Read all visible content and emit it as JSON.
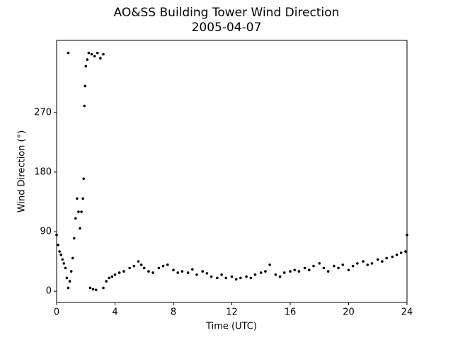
{
  "chart_data": {
    "type": "scatter",
    "title": "AO&SS Building Tower Wind Direction",
    "subtitle": "2005-04-07",
    "x_label": "Time (UTC)",
    "y_label": "Wind Direction (°)",
    "color": "#000000",
    "grid": false,
    "xlim": [
      0,
      24
    ],
    "xticks": [
      0,
      4,
      8,
      12,
      16,
      20,
      24
    ],
    "ylim": [
      -17,
      379
    ],
    "yticks": [
      0,
      90,
      180,
      270
    ],
    "x": [
      0,
      0.1,
      0.2,
      0.3,
      0.4,
      0.5,
      0.6,
      0.7,
      0.8,
      0.8,
      0.9,
      1.0,
      1.1,
      1.2,
      1.3,
      1.4,
      1.5,
      1.6,
      1.7,
      1.8,
      1.85,
      1.9,
      1.95,
      2.0,
      2.1,
      2.2,
      2.3,
      2.4,
      2.5,
      2.6,
      2.7,
      2.8,
      3.0,
      3.2,
      3.2,
      3.4,
      3.6,
      3.8,
      4.0,
      4.3,
      4.6,
      5.0,
      5.3,
      5.6,
      5.8,
      6.0,
      6.3,
      6.6,
      7.0,
      7.3,
      7.6,
      8.0,
      8.3,
      8.6,
      9.0,
      9.3,
      9.6,
      10.0,
      10.3,
      10.6,
      11.0,
      11.3,
      11.6,
      12.0,
      12.3,
      12.6,
      13.0,
      13.3,
      13.6,
      14.0,
      14.3,
      14.6,
      15.0,
      15.3,
      15.6,
      16.0,
      16.3,
      16.6,
      17.0,
      17.3,
      17.6,
      18.0,
      18.3,
      18.6,
      19.0,
      19.3,
      19.6,
      20.0,
      20.3,
      20.6,
      21.0,
      21.3,
      21.6,
      22.0,
      22.3,
      22.6,
      23.0,
      23.3,
      23.6,
      23.9,
      24.0
    ],
    "values": [
      85,
      70,
      60,
      55,
      48,
      42,
      35,
      20,
      5,
      360,
      15,
      30,
      50,
      80,
      110,
      140,
      120,
      95,
      120,
      140,
      170,
      280,
      310,
      340,
      350,
      360,
      5,
      358,
      3,
      355,
      2,
      360,
      352,
      358,
      5,
      15,
      20,
      22,
      25,
      28,
      30,
      35,
      38,
      45,
      40,
      35,
      30,
      28,
      35,
      38,
      40,
      32,
      28,
      30,
      28,
      33,
      25,
      30,
      27,
      22,
      20,
      25,
      20,
      22,
      18,
      20,
      22,
      20,
      25,
      28,
      30,
      40,
      25,
      22,
      28,
      30,
      32,
      30,
      35,
      32,
      38,
      42,
      35,
      30,
      38,
      35,
      40,
      32,
      38,
      42,
      45,
      40,
      42,
      48,
      45,
      50,
      52,
      55,
      58,
      60,
      85
    ]
  }
}
